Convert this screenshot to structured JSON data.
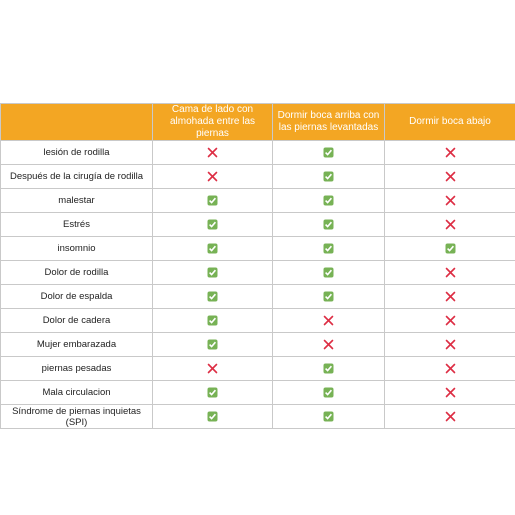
{
  "table": {
    "columns": [
      "Cama de lado con almohada entre las piernas",
      "Dormir boca arriba con las piernas levantadas",
      "Dormir boca abajo"
    ],
    "rows": [
      {
        "label": "lesión de rodilla",
        "cells": [
          false,
          true,
          false
        ]
      },
      {
        "label": "Después de la cirugía de rodilla",
        "cells": [
          false,
          true,
          false
        ]
      },
      {
        "label": "malestar",
        "cells": [
          true,
          true,
          false
        ]
      },
      {
        "label": "Estrés",
        "cells": [
          true,
          true,
          false
        ]
      },
      {
        "label": "insomnio",
        "cells": [
          true,
          true,
          true
        ]
      },
      {
        "label": "Dolor de rodilla",
        "cells": [
          true,
          true,
          false
        ]
      },
      {
        "label": "Dolor de espalda",
        "cells": [
          true,
          true,
          false
        ]
      },
      {
        "label": "Dolor de cadera",
        "cells": [
          true,
          false,
          false
        ]
      },
      {
        "label": "Mujer embarazada",
        "cells": [
          true,
          false,
          false
        ]
      },
      {
        "label": "piernas pesadas",
        "cells": [
          false,
          true,
          false
        ]
      },
      {
        "label": "Mala circulacion",
        "cells": [
          true,
          true,
          false
        ]
      },
      {
        "label": "Síndrome de piernas inquietas (SPI)",
        "cells": [
          true,
          true,
          false
        ]
      }
    ]
  }
}
